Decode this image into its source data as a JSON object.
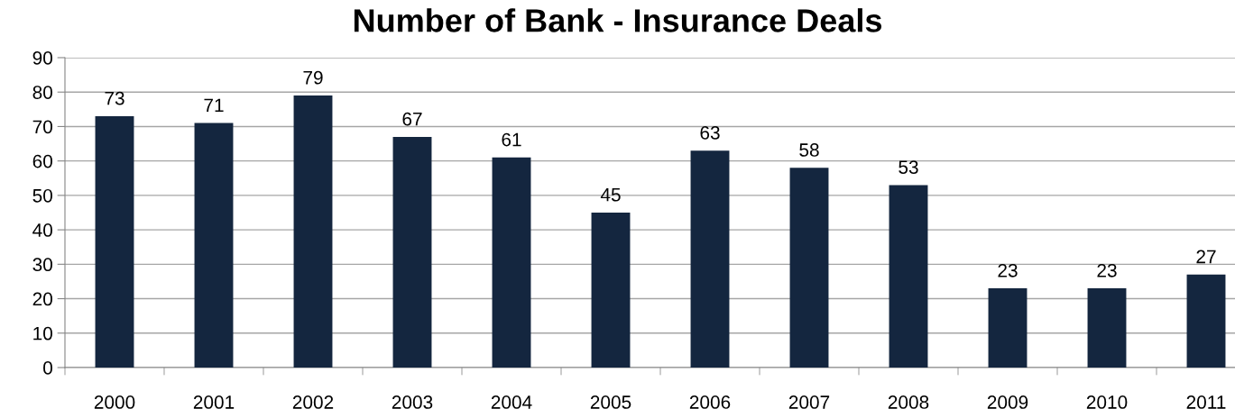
{
  "chart_data": {
    "type": "bar",
    "title": "Number of Bank - Insurance Deals",
    "categories": [
      "2000",
      "2001",
      "2002",
      "2003",
      "2004",
      "2005",
      "2006",
      "2007",
      "2008",
      "2009",
      "2010",
      "2011"
    ],
    "values": [
      73,
      71,
      79,
      67,
      61,
      45,
      63,
      58,
      53,
      23,
      23,
      27
    ],
    "color": "#14263f",
    "ylim": [
      0,
      90
    ],
    "yticks": [
      0,
      10,
      20,
      30,
      40,
      50,
      60,
      70,
      80,
      90
    ],
    "grid": "y",
    "data_labels": true,
    "legend": false
  }
}
